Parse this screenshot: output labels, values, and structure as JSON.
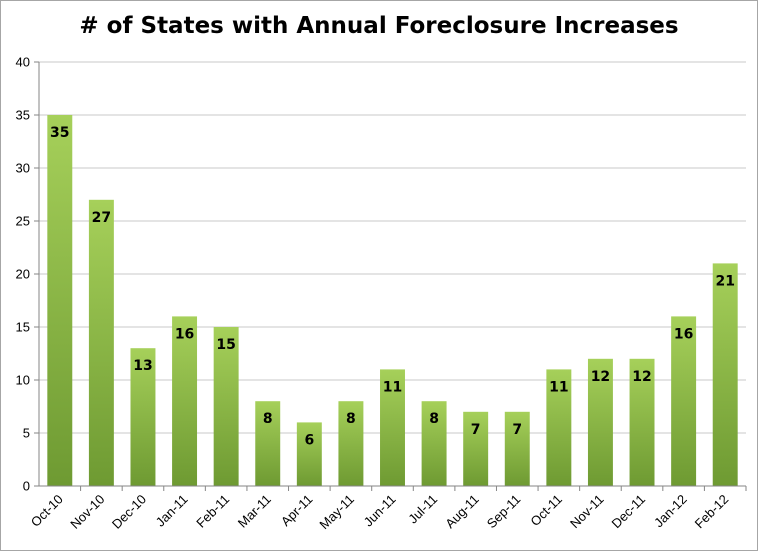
{
  "chart_data": {
    "type": "bar",
    "title": "# of States with Annual Foreclosure Increases",
    "categories": [
      "Oct-10",
      "Nov-10",
      "Dec-10",
      "Jan-11",
      "Feb-11",
      "Mar-11",
      "Apr-11",
      "May-11",
      "Jun-11",
      "Jul-11",
      "Aug-11",
      "Sep-11",
      "Oct-11",
      "Nov-11",
      "Dec-11",
      "Jan-12",
      "Feb-12"
    ],
    "values": [
      35,
      27,
      13,
      16,
      15,
      8,
      6,
      8,
      11,
      8,
      7,
      7,
      11,
      12,
      12,
      16,
      21
    ],
    "ylim": [
      0,
      40
    ],
    "yticks": [
      0,
      5,
      10,
      15,
      20,
      25,
      30,
      35,
      40
    ],
    "xlabel": "",
    "ylabel": "",
    "grid": true,
    "legend": "none",
    "data_labels": true,
    "colors": {
      "bar_top": "#a6d05a",
      "bar_bottom": "#6e9a32",
      "grid": "#c8c8c8",
      "axis": "#868686"
    }
  }
}
